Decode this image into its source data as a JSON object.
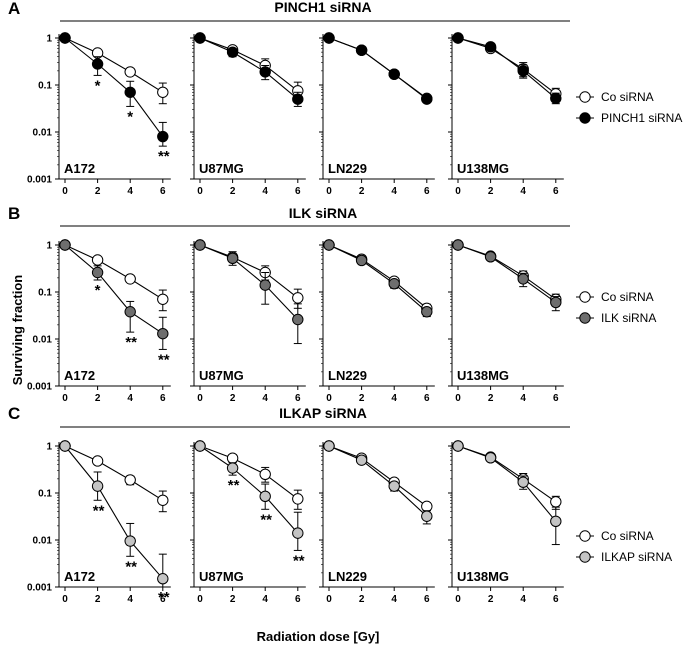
{
  "figure": {
    "xlabel": "Radiation dose [Gy]",
    "ylabel": "Surviving fraction"
  },
  "chart_data": [
    {
      "type": "line",
      "panel": "A",
      "title": "PINCH1 siRNA",
      "x": [
        0,
        2,
        4,
        6
      ],
      "xticks": [
        "0",
        "2",
        "4",
        "6"
      ],
      "yscale": "log",
      "ylim": [
        0.001,
        1
      ],
      "yticks": [
        "1",
        "0.1",
        "0.01",
        "0.001"
      ],
      "legend": [
        "Co siRNA",
        "PINCH1 siRNA"
      ],
      "treatment_color": "#000000",
      "subplots": [
        {
          "cell_line": "A172",
          "series": [
            {
              "name": "Co siRNA",
              "values": [
                1,
                0.48,
                0.19,
                0.07
              ],
              "err_hi": [
                0,
                0.05,
                0.03,
                0.04
              ],
              "err_lo": [
                0,
                0.05,
                0.03,
                0.03
              ]
            },
            {
              "name": "PINCH1 siRNA",
              "values": [
                1,
                0.28,
                0.07,
                0.008
              ],
              "err_hi": [
                0,
                0.12,
                0.05,
                0.008
              ],
              "err_lo": [
                0,
                0.12,
                0.035,
                0.003
              ]
            }
          ],
          "significance": [
            {
              "x": 2,
              "mark": "*"
            },
            {
              "x": 4,
              "mark": "*"
            },
            {
              "x": 6,
              "mark": "**"
            }
          ]
        },
        {
          "cell_line": "U87MG",
          "series": [
            {
              "name": "Co siRNA",
              "values": [
                1,
                0.56,
                0.26,
                0.075
              ],
              "err_hi": [
                0,
                0.08,
                0.1,
                0.04
              ],
              "err_lo": [
                0,
                0.08,
                0.08,
                0.025
              ]
            },
            {
              "name": "PINCH1 siRNA",
              "values": [
                1,
                0.5,
                0.19,
                0.05
              ],
              "err_hi": [
                0,
                0.1,
                0.07,
                0.02
              ],
              "err_lo": [
                0,
                0.1,
                0.06,
                0.015
              ]
            }
          ],
          "significance": []
        },
        {
          "cell_line": "LN229",
          "series": [
            {
              "name": "Co siRNA",
              "values": [
                1,
                0.55,
                0.17,
                0.052
              ],
              "err_hi": [
                0,
                0.04,
                0.02,
                0.006
              ],
              "err_lo": [
                0,
                0.04,
                0.02,
                0.006
              ]
            },
            {
              "name": "PINCH1 siRNA",
              "values": [
                1,
                0.55,
                0.17,
                0.05
              ],
              "err_hi": [
                0,
                0.04,
                0.02,
                0.006
              ],
              "err_lo": [
                0,
                0.04,
                0.02,
                0.006
              ]
            }
          ],
          "significance": []
        },
        {
          "cell_line": "U138MG",
          "series": [
            {
              "name": "Co siRNA",
              "values": [
                1,
                0.6,
                0.22,
                0.065
              ],
              "err_hi": [
                0,
                0.08,
                0.08,
                0.02
              ],
              "err_lo": [
                0,
                0.08,
                0.07,
                0.015
              ]
            },
            {
              "name": "PINCH1 siRNA",
              "values": [
                1,
                0.65,
                0.2,
                0.052
              ],
              "err_hi": [
                0,
                0.08,
                0.07,
                0.015
              ],
              "err_lo": [
                0,
                0.08,
                0.06,
                0.012
              ]
            }
          ],
          "significance": []
        }
      ]
    },
    {
      "type": "line",
      "panel": "B",
      "title": "ILK siRNA",
      "x": [
        0,
        2,
        4,
        6
      ],
      "xticks": [
        "0",
        "2",
        "4",
        "6"
      ],
      "yscale": "log",
      "ylim": [
        0.001,
        1
      ],
      "yticks": [
        "1",
        "0.1",
        "0.01",
        "0.001"
      ],
      "legend": [
        "Co siRNA",
        "ILK siRNA"
      ],
      "treatment_color": "#6e6e6e",
      "subplots": [
        {
          "cell_line": "A172",
          "series": [
            {
              "name": "Co siRNA",
              "values": [
                1,
                0.48,
                0.19,
                0.07
              ],
              "err_hi": [
                0,
                0.05,
                0.03,
                0.04
              ],
              "err_lo": [
                0,
                0.05,
                0.03,
                0.03
              ]
            },
            {
              "name": "ILK siRNA",
              "values": [
                1,
                0.26,
                0.038,
                0.013
              ],
              "err_hi": [
                0,
                0.1,
                0.025,
                0.016
              ],
              "err_lo": [
                0,
                0.08,
                0.024,
                0.007
              ]
            }
          ],
          "significance": [
            {
              "x": 2,
              "mark": "*"
            },
            {
              "x": 4,
              "mark": "**"
            },
            {
              "x": 6,
              "mark": "**"
            }
          ]
        },
        {
          "cell_line": "U87MG",
          "series": [
            {
              "name": "Co siRNA",
              "values": [
                1,
                0.55,
                0.26,
                0.075
              ],
              "err_hi": [
                0,
                0.08,
                0.1,
                0.04
              ],
              "err_lo": [
                0,
                0.08,
                0.08,
                0.03
              ]
            },
            {
              "name": "ILK siRNA",
              "values": [
                1,
                0.52,
                0.14,
                0.026
              ],
              "err_hi": [
                0,
                0.2,
                0.12,
                0.03
              ],
              "err_lo": [
                0,
                0.15,
                0.085,
                0.018
              ]
            }
          ],
          "significance": []
        },
        {
          "cell_line": "LN229",
          "series": [
            {
              "name": "Co siRNA",
              "values": [
                1,
                0.5,
                0.17,
                0.045
              ],
              "err_hi": [
                0,
                0.05,
                0.03,
                0.01
              ],
              "err_lo": [
                0,
                0.05,
                0.03,
                0.01
              ]
            },
            {
              "name": "ILK siRNA",
              "values": [
                1,
                0.47,
                0.15,
                0.038
              ],
              "err_hi": [
                0,
                0.05,
                0.03,
                0.008
              ],
              "err_lo": [
                0,
                0.05,
                0.03,
                0.008
              ]
            }
          ],
          "significance": []
        },
        {
          "cell_line": "U138MG",
          "series": [
            {
              "name": "Co siRNA",
              "values": [
                1,
                0.58,
                0.22,
                0.07
              ],
              "err_hi": [
                0,
                0.06,
                0.06,
                0.02
              ],
              "err_lo": [
                0,
                0.06,
                0.05,
                0.02
              ]
            },
            {
              "name": "ILK siRNA",
              "values": [
                1,
                0.56,
                0.19,
                0.06
              ],
              "err_hi": [
                0,
                0.06,
                0.06,
                0.02
              ],
              "err_lo": [
                0,
                0.06,
                0.06,
                0.02
              ]
            }
          ],
          "significance": []
        }
      ]
    },
    {
      "type": "line",
      "panel": "C",
      "title": "ILKAP siRNA",
      "x": [
        0,
        2,
        4,
        6
      ],
      "xticks": [
        "0",
        "2",
        "4",
        "6"
      ],
      "yscale": "log",
      "ylim": [
        0.001,
        1
      ],
      "yticks": [
        "1",
        "0.1",
        "0.01",
        "0.001"
      ],
      "legend": [
        "Co siRNA",
        "ILKAP siRNA"
      ],
      "treatment_color": "#c4c4c4",
      "subplots": [
        {
          "cell_line": "A172",
          "series": [
            {
              "name": "Co siRNA",
              "values": [
                1,
                0.48,
                0.19,
                0.07
              ],
              "err_hi": [
                0,
                0.05,
                0.04,
                0.04
              ],
              "err_lo": [
                0,
                0.05,
                0.04,
                0.03
              ]
            },
            {
              "name": "ILKAP siRNA",
              "values": [
                1,
                0.14,
                0.0095,
                0.0015
              ],
              "err_hi": [
                0,
                0.14,
                0.013,
                0.0035
              ],
              "err_lo": [
                0,
                0.07,
                0.005,
                0.0005
              ]
            }
          ],
          "significance": [
            {
              "x": 2,
              "mark": "**"
            },
            {
              "x": 4,
              "mark": "**"
            },
            {
              "x": 6,
              "mark": "**"
            }
          ]
        },
        {
          "cell_line": "U87MG",
          "series": [
            {
              "name": "Co siRNA",
              "values": [
                1,
                0.55,
                0.25,
                0.075
              ],
              "err_hi": [
                0,
                0.1,
                0.1,
                0.04
              ],
              "err_lo": [
                0,
                0.1,
                0.08,
                0.03
              ]
            },
            {
              "name": "ILKAP siRNA",
              "values": [
                1,
                0.34,
                0.085,
                0.014
              ],
              "err_hi": [
                0,
                0.1,
                0.07,
                0.025
              ],
              "err_lo": [
                0,
                0.1,
                0.04,
                0.008
              ]
            }
          ],
          "significance": [
            {
              "x": 2,
              "mark": "**"
            },
            {
              "x": 4,
              "mark": "**"
            },
            {
              "x": 6,
              "mark": "**"
            }
          ]
        },
        {
          "cell_line": "LN229",
          "series": [
            {
              "name": "Co siRNA",
              "values": [
                1,
                0.55,
                0.17,
                0.052
              ],
              "err_hi": [
                0,
                0.06,
                0.03,
                0.01
              ],
              "err_lo": [
                0,
                0.06,
                0.03,
                0.01
              ]
            },
            {
              "name": "ILKAP siRNA",
              "values": [
                1,
                0.5,
                0.14,
                0.032
              ],
              "err_hi": [
                0,
                0.06,
                0.03,
                0.01
              ],
              "err_lo": [
                0,
                0.06,
                0.03,
                0.01
              ]
            }
          ],
          "significance": []
        },
        {
          "cell_line": "U138MG",
          "series": [
            {
              "name": "Co siRNA",
              "values": [
                1,
                0.58,
                0.2,
                0.065
              ],
              "err_hi": [
                0,
                0.06,
                0.06,
                0.02
              ],
              "err_lo": [
                0,
                0.06,
                0.05,
                0.02
              ]
            },
            {
              "name": "ILKAP siRNA",
              "values": [
                1,
                0.56,
                0.17,
                0.025
              ],
              "err_hi": [
                0,
                0.06,
                0.06,
                0.025
              ],
              "err_lo": [
                0,
                0.06,
                0.05,
                0.017
              ]
            }
          ],
          "significance": []
        }
      ]
    }
  ]
}
